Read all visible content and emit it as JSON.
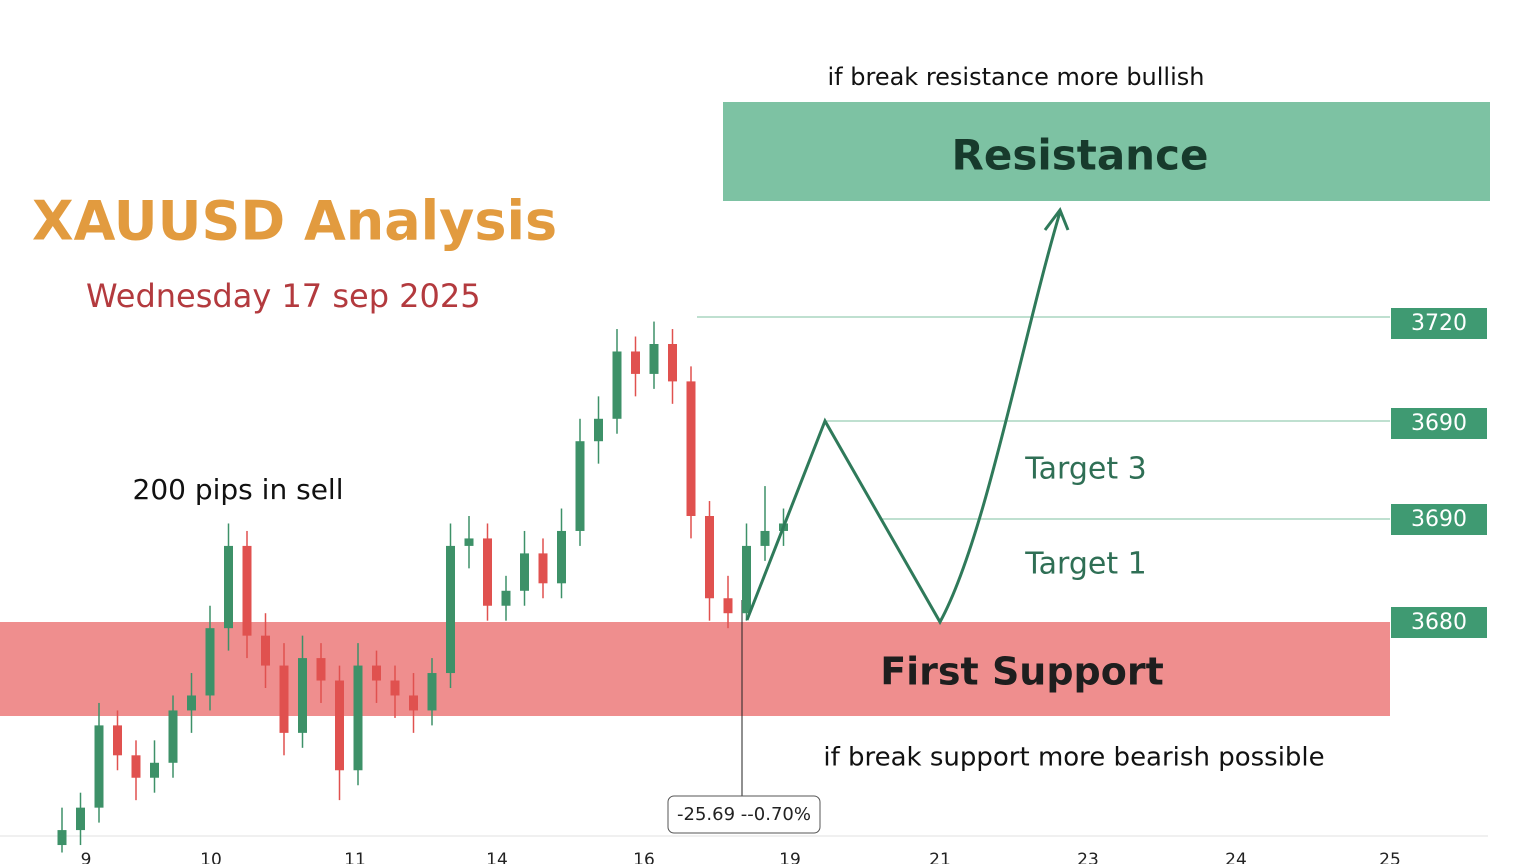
{
  "chart_data": {
    "type": "candlestick",
    "title": "XAUUSD Analysis",
    "subtitle": "Wednesday 17 sep 2025",
    "annotations": {
      "resistance_note": "if break resistance more bullish",
      "resistance": "Resistance",
      "sell_note": "200 pips in sell",
      "target3": "Target 3",
      "target1": "Target 1",
      "support": "First Support",
      "support_note": "if break support more bearish possible",
      "measure": "-25.69 --0.70%"
    },
    "levels": [
      "3720",
      "3690",
      "3690",
      "3680"
    ],
    "x_labels": [
      "9",
      "10",
      "11",
      "14",
      "16",
      "19",
      "21",
      "23",
      "24",
      "25"
    ],
    "ylim": [
      3648,
      3763
    ],
    "up_color": "#3d9168",
    "down_color": "#e0514f",
    "open": [
      3650,
      3652,
      3655,
      3666,
      3662,
      3659,
      3661,
      3668,
      3670,
      3679,
      3690,
      3678,
      3674,
      3665,
      3675,
      3672,
      3660,
      3674,
      3672,
      3670,
      3668,
      3673,
      3690,
      3691,
      3682,
      3684,
      3689,
      3685,
      3692,
      3704,
      3707,
      3716,
      3713,
      3717,
      3712,
      3694,
      3683,
      3681,
      3690,
      3692
    ],
    "high": [
      3655,
      3657,
      3669,
      3668,
      3664,
      3664,
      3670,
      3673,
      3682,
      3693,
      3692,
      3681,
      3677,
      3678,
      3677,
      3674,
      3677,
      3676,
      3674,
      3673,
      3675,
      3693,
      3694,
      3693,
      3686,
      3692,
      3691,
      3695,
      3707,
      3710,
      3719,
      3718,
      3720,
      3719,
      3714,
      3696,
      3686,
      3693,
      3698,
      3695
    ],
    "low": [
      3649,
      3650,
      3653,
      3660,
      3656,
      3657,
      3659,
      3665,
      3668,
      3676,
      3675,
      3671,
      3662,
      3663,
      3669,
      3656,
      3658,
      3669,
      3667,
      3665,
      3666,
      3671,
      3687,
      3680,
      3680,
      3682,
      3683,
      3683,
      3690,
      3701,
      3705,
      3710,
      3711,
      3709,
      3691,
      3680,
      3679,
      3680,
      3688,
      3690
    ],
    "close": [
      3652,
      3655,
      3666,
      3662,
      3659,
      3661,
      3668,
      3670,
      3679,
      3690,
      3678,
      3674,
      3665,
      3675,
      3672,
      3660,
      3674,
      3672,
      3670,
      3668,
      3673,
      3690,
      3691,
      3682,
      3684,
      3689,
      3685,
      3692,
      3704,
      3707,
      3716,
      3713,
      3717,
      3712,
      3694,
      3683,
      3681,
      3690,
      3692,
      3693
    ]
  }
}
